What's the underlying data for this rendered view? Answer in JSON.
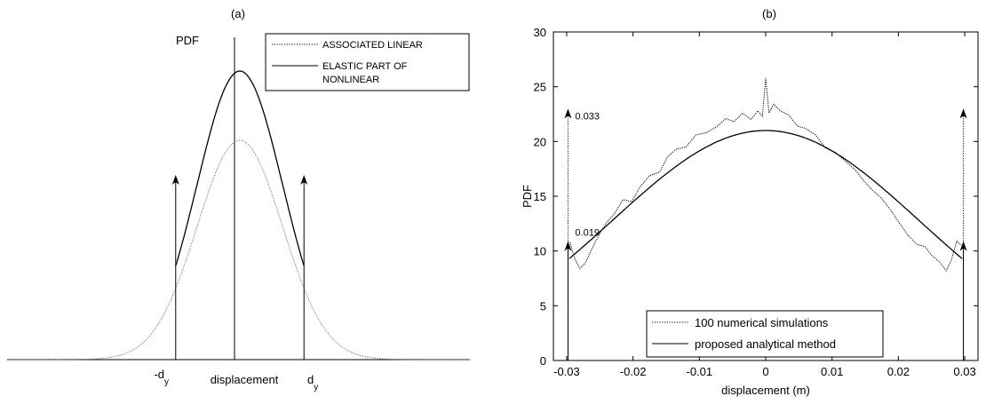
{
  "chart_data": [
    {
      "type": "line",
      "panel_label": "(a)",
      "ylabel": "PDF",
      "xlabel": "displacement",
      "x_tick_labels": [
        {
          "main": "-d",
          "sub": "y"
        },
        {
          "main": "d",
          "sub": "y"
        }
      ],
      "legend": {
        "placement": "top-right",
        "entries": [
          {
            "label": "ASSOCIATED LINEAR",
            "style": "dotted"
          },
          {
            "label": "ELASTIC PART OF",
            "label2": "NONLINEAR",
            "style": "solid"
          }
        ]
      },
      "x_domain": [
        -5.4,
        5.4
      ],
      "y_domain": [
        0,
        1.25
      ],
      "series": [
        {
          "name": "ASSOCIATED LINEAR",
          "style": "dotted",
          "color": "#666666",
          "curve": {
            "kind": "gaussian",
            "peak": 0.76,
            "sigma": 1.0,
            "x_range": [
              -5.4,
              5.4
            ]
          }
        },
        {
          "name": "ELASTIC PART OF NONLINEAR",
          "style": "solid",
          "color": "#000000",
          "curve": {
            "kind": "gaussian",
            "peak": 1.0,
            "sigma": 1.0,
            "x_range": [
              -1.5,
              1.5
            ]
          }
        }
      ],
      "arrows": [
        {
          "x": -1.5,
          "y_from": 0,
          "y_to": 0.64
        },
        {
          "x": 1.5,
          "y_from": 0,
          "y_to": 0.64
        }
      ],
      "center_line": {
        "x": 0
      }
    },
    {
      "type": "line",
      "panel_label": "(b)",
      "ylabel": "PDF",
      "xlabel": "displacement (m)",
      "xlim": [
        -0.032,
        0.032
      ],
      "ylim": [
        0,
        30
      ],
      "xticks": [
        -0.03,
        -0.02,
        -0.01,
        0,
        0.01,
        0.02,
        0.03
      ],
      "xtick_labels": [
        "-0.03",
        "-0.02",
        "-0.01",
        "0",
        "0.01",
        "0.02",
        "0.03"
      ],
      "yticks": [
        0,
        5,
        10,
        15,
        20,
        25,
        30
      ],
      "ytick_labels": [
        "0",
        "5",
        "10",
        "15",
        "20",
        "25",
        "30"
      ],
      "grid": false,
      "legend": {
        "placement": "bottom-center",
        "entries": [
          {
            "label": "100 numerical simulations",
            "style": "dotted"
          },
          {
            "label": "proposed analytical method",
            "style": "solid"
          }
        ]
      },
      "series": [
        {
          "name": "100 numerical simulations",
          "style": "dotted",
          "color": "#000000",
          "x": [
            -0.0295,
            -0.0288,
            -0.028,
            -0.0272,
            -0.0262,
            -0.025,
            -0.024,
            -0.0228,
            -0.0215,
            -0.0202,
            -0.019,
            -0.0175,
            -0.016,
            -0.0148,
            -0.0135,
            -0.012,
            -0.0105,
            -0.009,
            -0.0075,
            -0.006,
            -0.0048,
            -0.0035,
            -0.0022,
            -0.0012,
            -0.0005,
            0.0,
            0.0005,
            0.0012,
            0.0022,
            0.0035,
            0.0048,
            0.006,
            0.0075,
            0.009,
            0.0105,
            0.012,
            0.0135,
            0.0148,
            0.016,
            0.0175,
            0.019,
            0.0202,
            0.0215,
            0.0228,
            0.024,
            0.025,
            0.0262,
            0.0272,
            0.028,
            0.0288,
            0.0295
          ],
          "y": [
            10.8,
            9.3,
            8.4,
            8.9,
            10.2,
            11.6,
            12.6,
            13.4,
            14.7,
            14.5,
            15.8,
            16.9,
            17.2,
            18.6,
            19.3,
            19.5,
            20.6,
            20.8,
            21.3,
            22.1,
            21.8,
            22.6,
            22.0,
            22.8,
            22.3,
            25.8,
            22.6,
            23.4,
            22.8,
            22.4,
            21.4,
            21.2,
            20.6,
            19.4,
            19.0,
            18.2,
            17.4,
            16.4,
            15.6,
            14.8,
            13.6,
            12.5,
            11.4,
            10.6,
            10.4,
            9.6,
            9.0,
            8.2,
            9.2,
            10.9,
            10.5
          ]
        },
        {
          "name": "proposed analytical method",
          "style": "solid",
          "color": "#000000",
          "curve": {
            "kind": "gaussian",
            "peak": 21.0,
            "sigma": 0.0232,
            "x_range": [
              -0.0296,
              0.0296
            ]
          }
        }
      ],
      "arrows": [
        {
          "x": -0.0298,
          "y_from": 0,
          "y_to": 23.0,
          "style": "dotted",
          "label": "0.033"
        },
        {
          "x": -0.0298,
          "y_from": 0,
          "y_to": 10.9,
          "style": "solid",
          "label": "0.019"
        },
        {
          "x": 0.0298,
          "y_from": 0,
          "y_to": 10.9,
          "style": "solid"
        },
        {
          "x": 0.0298,
          "y_from": 0,
          "y_to": 23.0,
          "style": "dotted"
        }
      ]
    }
  ]
}
